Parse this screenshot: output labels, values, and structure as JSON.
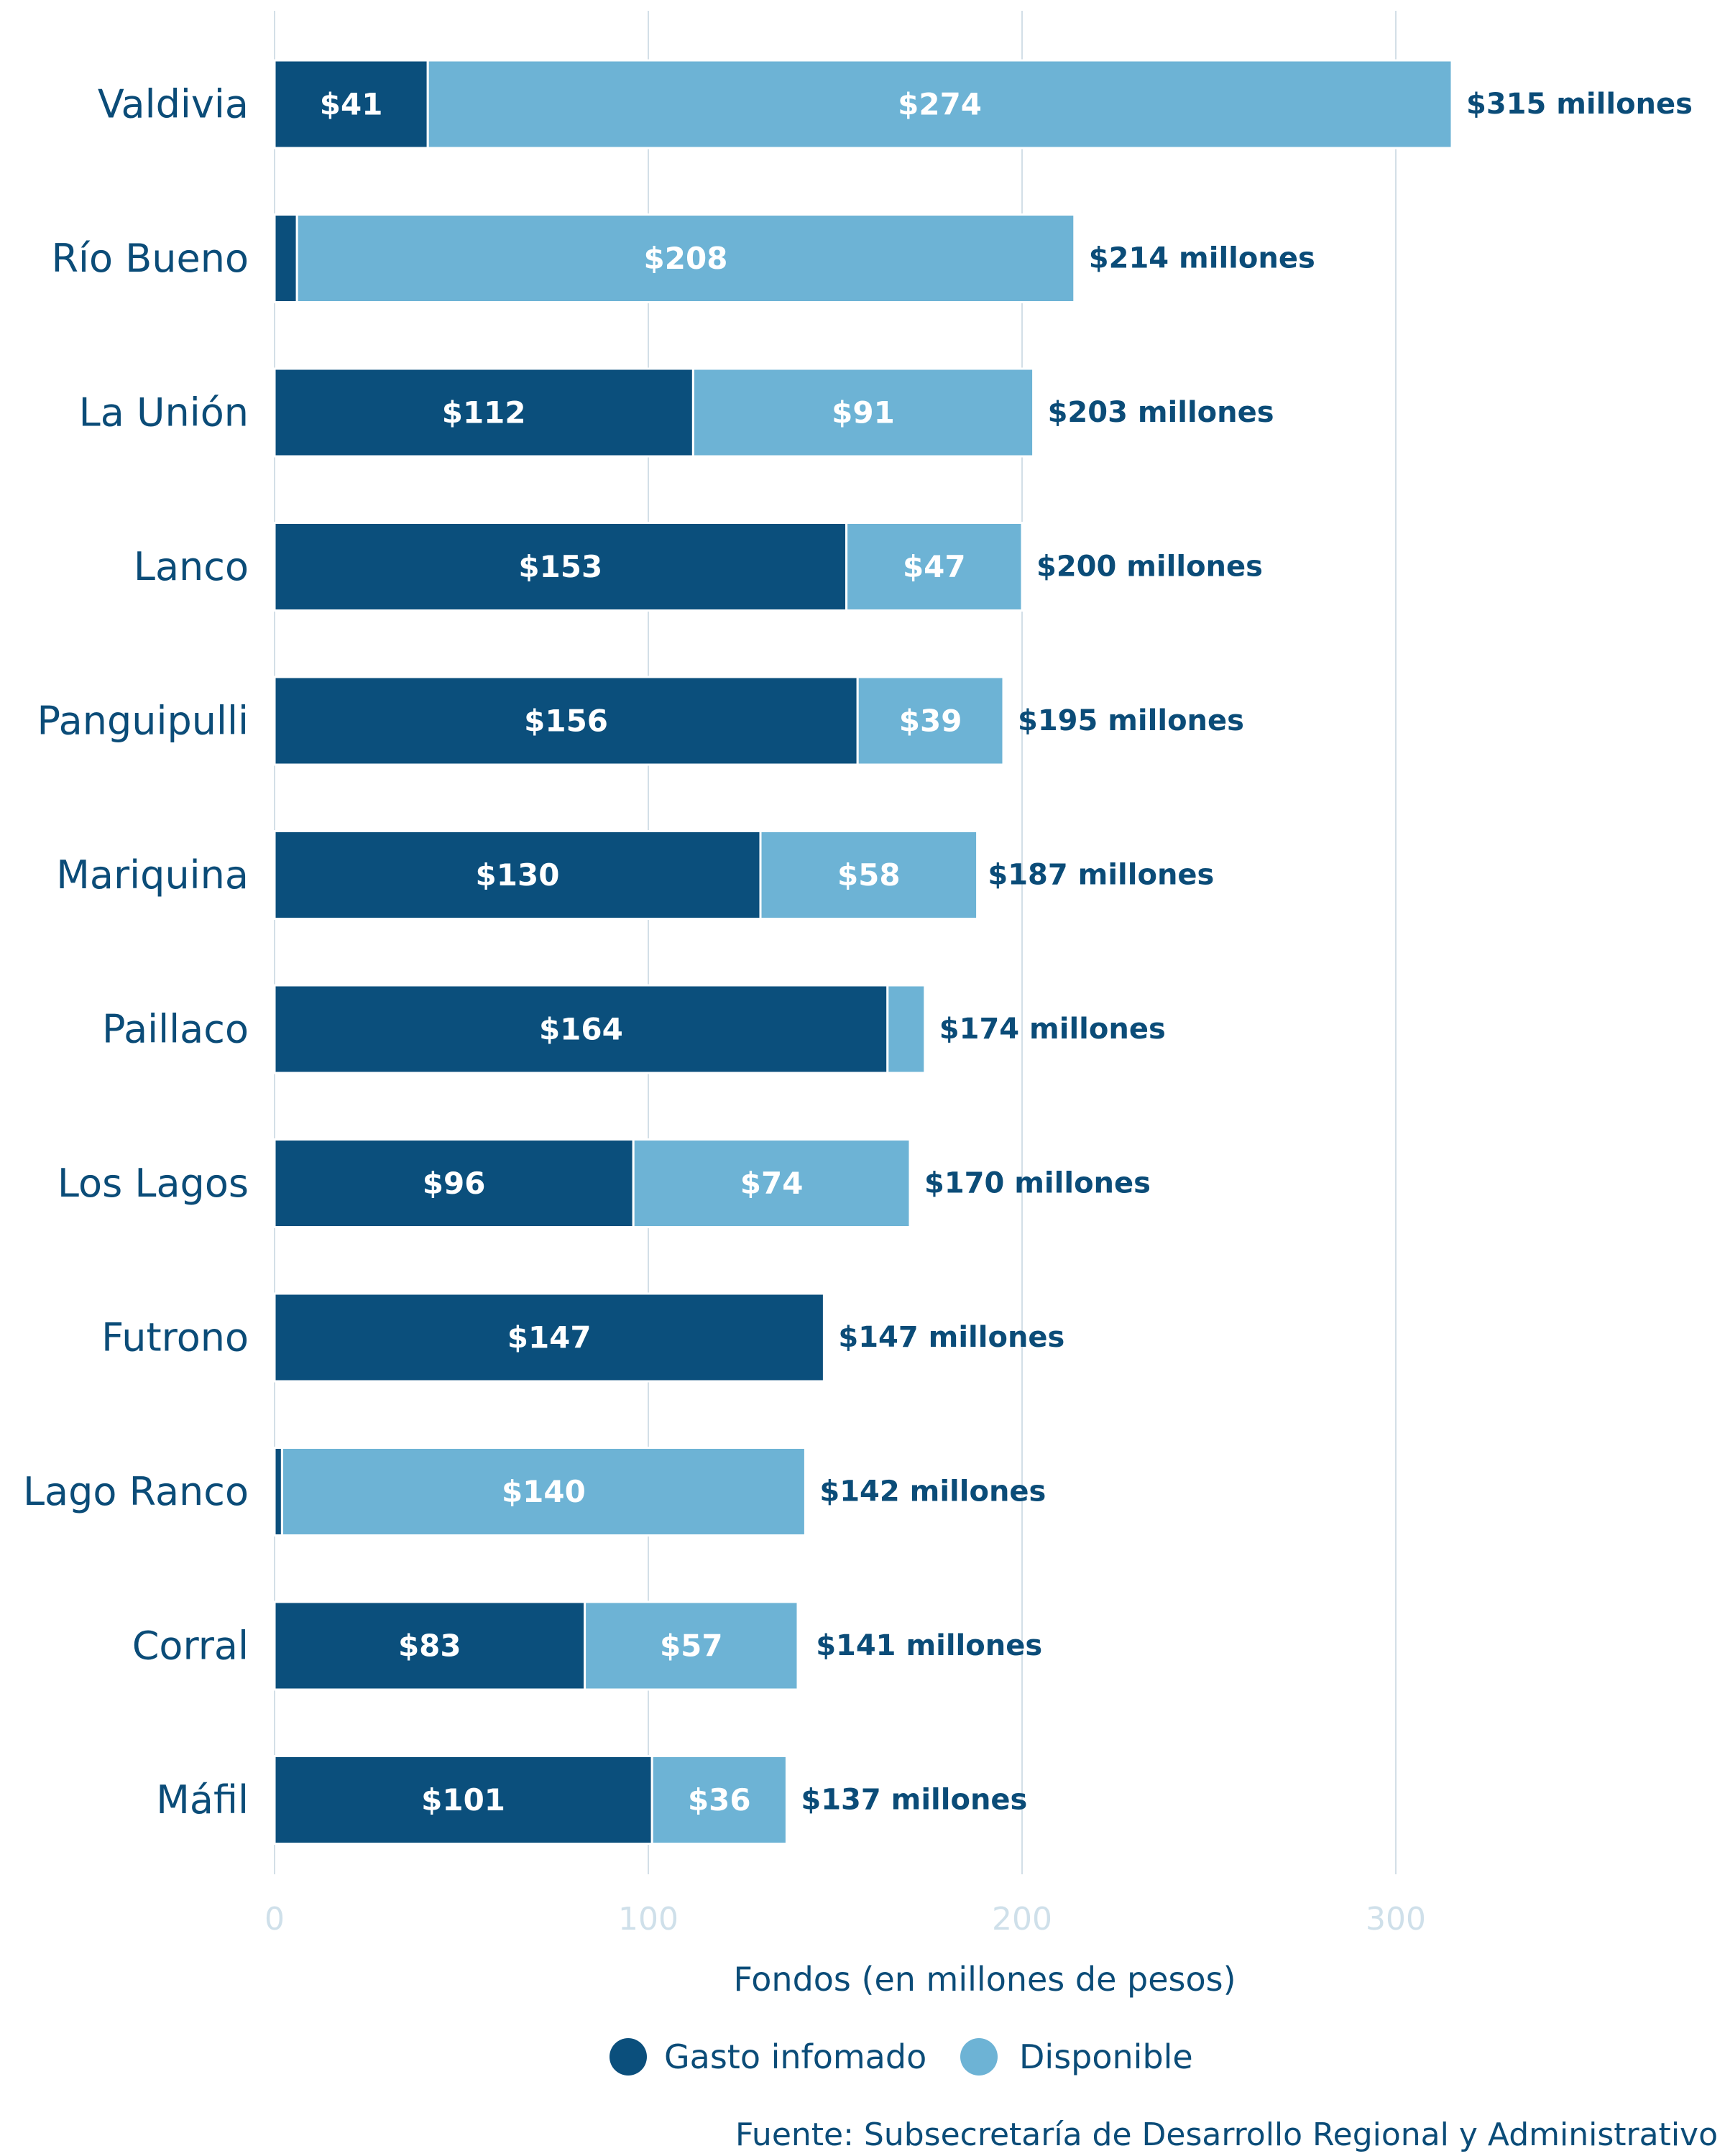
{
  "chart_data": {
    "type": "bar",
    "orientation": "horizontal",
    "stacked": true,
    "categories": [
      "Valdivia",
      "Río Bueno",
      "La Unión",
      "Lanco",
      "Panguipulli",
      "Mariquina",
      "Paillaco",
      "Los Lagos",
      "Futrono",
      "Lago Ranco",
      "Corral",
      "Máfil"
    ],
    "series": [
      {
        "name": "Gasto infomado",
        "color": "#0b4f7c",
        "values": [
          41,
          6,
          112,
          153,
          156,
          130,
          164,
          96,
          147,
          2,
          83,
          101
        ],
        "labels": [
          "$41",
          "",
          "$112",
          "$153",
          "$156",
          "$130",
          "$164",
          "$96",
          "$147",
          "",
          "$83",
          "$101"
        ]
      },
      {
        "name": "Disponible",
        "color": "#6db3d5",
        "values": [
          274,
          208,
          91,
          47,
          39,
          58,
          10,
          74,
          0,
          140,
          57,
          36
        ],
        "labels": [
          "$274",
          "$208",
          "$91",
          "$47",
          "$39",
          "$58",
          "",
          "$74",
          "",
          "$140",
          "$57",
          "$36"
        ]
      }
    ],
    "totals": [
      315,
      214,
      203,
      200,
      195,
      187,
      174,
      170,
      147,
      142,
      141,
      137
    ],
    "total_labels": [
      "$315 millones",
      "$214 millones",
      "$203 millones",
      "$200 millones",
      "$195 millones",
      "$187 millones",
      "$174 millones",
      "$170 millones",
      "$147 millones",
      "$142 millones",
      "$141 millones",
      "$137 millones"
    ],
    "xlabel": "Fondos (en millones de pesos)",
    "ylabel": "",
    "xlim": [
      0,
      370
    ],
    "xticks": [
      0,
      100,
      200,
      300
    ],
    "xtick_labels": [
      "0",
      "100",
      "200",
      "300"
    ],
    "grid": true,
    "legend_position": "bottom",
    "source": "Fuente: Subsecretaría de Desarrollo Regional y Administrativo"
  }
}
